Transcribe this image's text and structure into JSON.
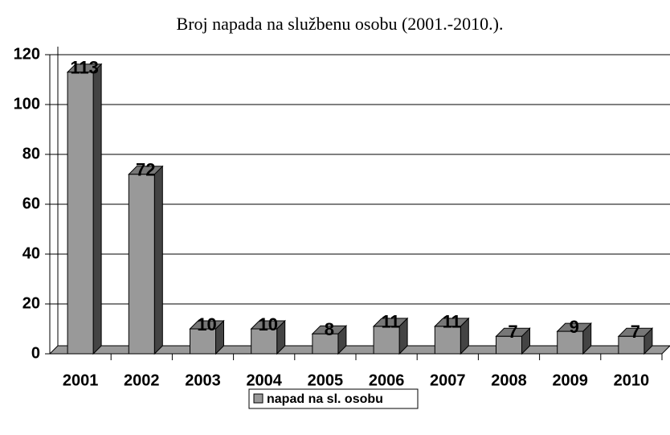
{
  "chart_data": {
    "type": "bar",
    "title": "Broj napada na službenu osobu (2001.-2010.).",
    "categories": [
      "2001",
      "2002",
      "2003",
      "2004",
      "2005",
      "2006",
      "2007",
      "2008",
      "2009",
      "2010"
    ],
    "series": [
      {
        "name": "napad na sl. osobu",
        "color": "#999999",
        "values": [
          113,
          72,
          10,
          10,
          8,
          11,
          11,
          7,
          9,
          7
        ]
      }
    ],
    "ylim": [
      0,
      120
    ],
    "yticks": [
      0,
      20,
      40,
      60,
      80,
      100,
      120
    ],
    "grid": true,
    "legend": "bottom"
  }
}
